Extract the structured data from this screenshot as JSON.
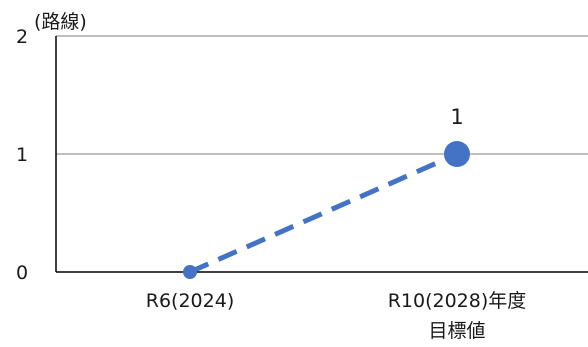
{
  "chart_data": {
    "type": "line",
    "categories": [
      "R6(2024)",
      "R10(2028)年度"
    ],
    "category_sublabels": [
      "",
      "目標値"
    ],
    "values": [
      0,
      1
    ],
    "data_labels": [
      "",
      "1"
    ],
    "ylabel": "(路線)",
    "ylim": [
      0,
      2
    ],
    "yticks": [
      0,
      1,
      2
    ],
    "grid": true,
    "line_style": "dashed",
    "colors": {
      "series": "#4472c4",
      "grid": "#7f7f7f",
      "axis": "#000000"
    }
  }
}
